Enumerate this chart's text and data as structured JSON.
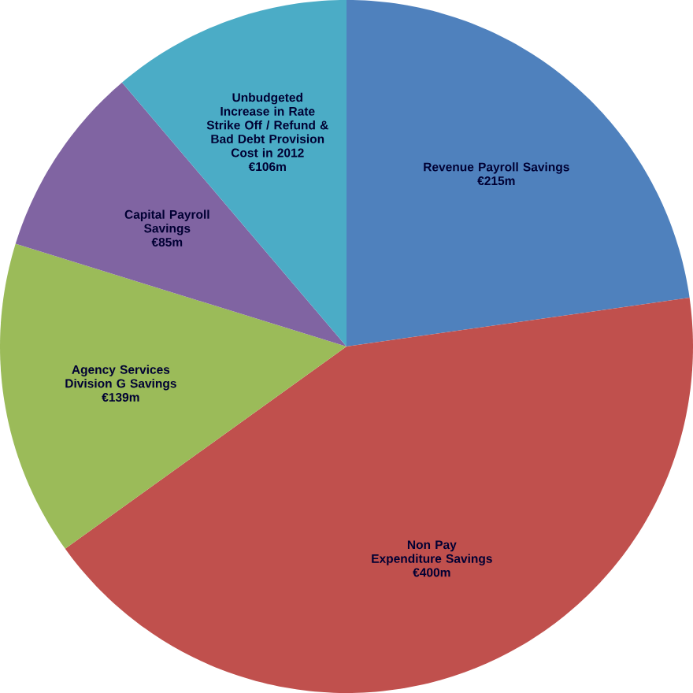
{
  "chart_data": {
    "type": "pie",
    "categories": [
      "Revenue Payroll Savings",
      "Non Pay Expenditure Savings",
      "Agency Services Division G Savings",
      "Capital Payroll Savings",
      "Unbudgeted Increase in Rate Strike Off / Refund & Bad Debt Provision Cost in 2012"
    ],
    "values": [
      215,
      400,
      139,
      85,
      106
    ],
    "value_labels": [
      "€215m",
      "€400m",
      "€139m",
      "€85m",
      "€106m"
    ],
    "colors": [
      "#4f81bd",
      "#c0504d",
      "#9bbb59",
      "#8064a2",
      "#4bacc6"
    ]
  }
}
